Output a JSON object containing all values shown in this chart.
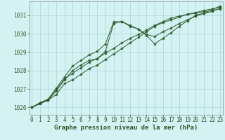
{
  "title": "Graphe pression niveau de la mer (hPa)",
  "background_color": "#d4f2f2",
  "grid_color": "#b0d8d8",
  "line_color": "#2d5a2d",
  "marker_color": "#2d5a2d",
  "x_values": [
    0,
    1,
    2,
    3,
    4,
    5,
    6,
    7,
    8,
    9,
    10,
    11,
    12,
    13,
    14,
    15,
    16,
    17,
    18,
    19,
    20,
    21,
    22,
    23
  ],
  "series": [
    [
      1026.0,
      1026.2,
      1026.4,
      1026.7,
      1027.3,
      1027.5,
      1027.8,
      1028.1,
      1028.3,
      1028.6,
      1028.9,
      1029.2,
      1029.5,
      1029.8,
      1030.1,
      1030.4,
      1030.6,
      1030.75,
      1030.9,
      1031.05,
      1031.1,
      1031.2,
      1031.25,
      1031.35
    ],
    [
      1026.0,
      1026.2,
      1026.4,
      1026.9,
      1027.5,
      1028.0,
      1028.3,
      1028.55,
      1028.65,
      1028.95,
      1029.2,
      1029.5,
      1029.75,
      1029.95,
      1030.2,
      1030.45,
      1030.65,
      1030.85,
      1030.95,
      1031.05,
      1031.15,
      1031.25,
      1031.35,
      1031.45
    ],
    [
      1026.0,
      1026.25,
      1026.4,
      1026.95,
      1027.55,
      1027.85,
      1028.15,
      1028.45,
      1028.65,
      1029.05,
      1030.55,
      1030.65,
      1030.45,
      1030.25,
      1029.95,
      1029.85,
      1030.1,
      1030.3,
      1030.55,
      1030.75,
      1030.95,
      1031.1,
      1031.2,
      1031.4
    ],
    [
      1026.0,
      1026.25,
      1026.45,
      1027.05,
      1027.65,
      1028.25,
      1028.55,
      1028.85,
      1029.05,
      1029.45,
      1030.65,
      1030.65,
      1030.4,
      1030.25,
      1029.9,
      1029.45,
      1029.75,
      1030.05,
      1030.4,
      1030.7,
      1031.0,
      1031.1,
      1031.3,
      1031.5
    ]
  ],
  "ylim": [
    1025.6,
    1031.75
  ],
  "yticks": [
    1026,
    1027,
    1028,
    1029,
    1030,
    1031
  ],
  "xlim": [
    -0.3,
    23.3
  ],
  "xticks": [
    0,
    1,
    2,
    3,
    4,
    5,
    6,
    7,
    8,
    9,
    10,
    11,
    12,
    13,
    14,
    15,
    16,
    17,
    18,
    19,
    20,
    21,
    22,
    23
  ],
  "tick_fontsize": 5.5,
  "title_fontsize": 6.5
}
